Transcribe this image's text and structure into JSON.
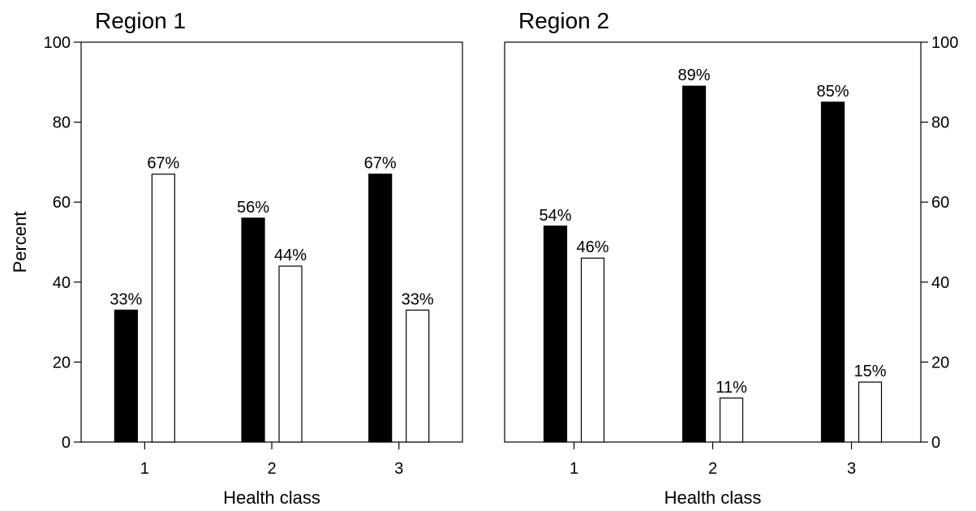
{
  "chart_data": [
    {
      "type": "bar",
      "title": "Region 1",
      "xlabel": "Health class",
      "ylabel": "Percent",
      "categories": [
        "1",
        "2",
        "3"
      ],
      "ylim": [
        0,
        100
      ],
      "yticks": [
        0,
        20,
        40,
        60,
        80,
        100
      ],
      "y_axis_side": "left",
      "series": [
        {
          "color": "#000000",
          "values": [
            33,
            56,
            67
          ],
          "labels": [
            "33%",
            "56%",
            "67%"
          ]
        },
        {
          "color": "#ffffff",
          "values": [
            67,
            44,
            33
          ],
          "labels": [
            "67%",
            "44%",
            "33%"
          ]
        }
      ]
    },
    {
      "type": "bar",
      "title": "Region 2",
      "xlabel": "Health class",
      "ylabel": "",
      "categories": [
        "1",
        "2",
        "3"
      ],
      "ylim": [
        0,
        100
      ],
      "yticks": [
        0,
        20,
        40,
        60,
        80,
        100
      ],
      "y_axis_side": "right",
      "series": [
        {
          "color": "#000000",
          "values": [
            54,
            89,
            85
          ],
          "labels": [
            "54%",
            "89%",
            "85%"
          ]
        },
        {
          "color": "#ffffff",
          "values": [
            46,
            11,
            15
          ],
          "labels": [
            "46%",
            "11%",
            "15%"
          ]
        }
      ]
    }
  ]
}
